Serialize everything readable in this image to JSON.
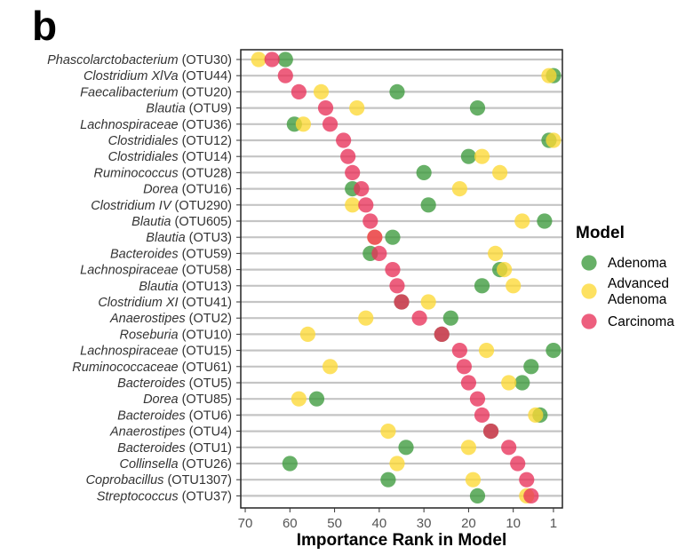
{
  "panel_label": "b",
  "chart_data": {
    "type": "scatter",
    "title": "",
    "xlabel": "Importance Rank in Model",
    "ylabel": "",
    "xlim": [
      71,
      -1
    ],
    "x_reversed": true,
    "x_ticks": [
      70,
      60,
      50,
      40,
      30,
      20,
      10,
      1
    ],
    "grid": "horizontal",
    "legend": {
      "title": "Model",
      "placement": "right",
      "entries": [
        {
          "label_lines": [
            "Adenoma"
          ],
          "color": "#3c9a3c"
        },
        {
          "label_lines": [
            "Advanced",
            "Adenoma"
          ],
          "color": "#fdd835"
        },
        {
          "label_lines": [
            "Carcinoma"
          ],
          "color": "#e8325a"
        }
      ]
    },
    "categories": [
      {
        "genus": "Phascolarctobacterium",
        "otu": "(OTU30)"
      },
      {
        "genus": "Clostridium XlVa",
        "otu": "(OTU44)"
      },
      {
        "genus": "Faecalibacterium",
        "otu": "(OTU20)"
      },
      {
        "genus": "Blautia",
        "otu": "(OTU9)"
      },
      {
        "genus": "Lachnospiraceae",
        "otu": "(OTU36)"
      },
      {
        "genus": "Clostridiales",
        "otu": "(OTU12)"
      },
      {
        "genus": "Clostridiales",
        "otu": "(OTU14)"
      },
      {
        "genus": "Ruminococcus",
        "otu": "(OTU28)"
      },
      {
        "genus": "Dorea",
        "otu": "(OTU16)"
      },
      {
        "genus": "Clostridium IV",
        "otu": "(OTU290)"
      },
      {
        "genus": "Blautia",
        "otu": "(OTU605)"
      },
      {
        "genus": "Blautia",
        "otu": "(OTU3)"
      },
      {
        "genus": "Bacteroides",
        "otu": "(OTU59)"
      },
      {
        "genus": "Lachnospiraceae",
        "otu": "(OTU58)"
      },
      {
        "genus": "Blautia",
        "otu": "(OTU13)"
      },
      {
        "genus": "Clostridium XI",
        "otu": "(OTU41)"
      },
      {
        "genus": "Anaerostipes",
        "otu": "(OTU2)"
      },
      {
        "genus": "Roseburia",
        "otu": "(OTU10)"
      },
      {
        "genus": "Lachnospiraceae",
        "otu": "(OTU15)"
      },
      {
        "genus": "Ruminococcaceae",
        "otu": "(OTU61)"
      },
      {
        "genus": "Bacteroides",
        "otu": "(OTU5)"
      },
      {
        "genus": "Dorea",
        "otu": "(OTU85)"
      },
      {
        "genus": "Bacteroides",
        "otu": "(OTU6)"
      },
      {
        "genus": "Anaerostipes",
        "otu": "(OTU4)"
      },
      {
        "genus": "Bacteroides",
        "otu": "(OTU1)"
      },
      {
        "genus": "Collinsella",
        "otu": "(OTU26)"
      },
      {
        "genus": "Coprobacillus",
        "otu": "(OTU1307)"
      },
      {
        "genus": "Streptococcus",
        "otu": "(OTU37)"
      }
    ],
    "series": [
      {
        "name": "Adenoma",
        "color": "#3c9a3c",
        "values": [
          61,
          1,
          36,
          18,
          59,
          2,
          20,
          30,
          46,
          29,
          3,
          37,
          42,
          13,
          17,
          35,
          24,
          26,
          1,
          6,
          8,
          54,
          4,
          15,
          34,
          60,
          38,
          18
        ]
      },
      {
        "name": "Advanced Adenoma",
        "color": "#fdd835",
        "values": [
          67,
          2,
          53,
          45,
          57,
          1,
          17,
          13,
          22,
          46,
          8,
          41,
          14,
          12,
          10,
          29,
          43,
          56,
          16,
          51,
          11,
          58,
          5,
          38,
          20,
          36,
          19,
          7
        ]
      },
      {
        "name": "Carcinoma",
        "color": "#e8325a",
        "values": [
          64,
          61,
          58,
          52,
          51,
          48,
          47,
          46,
          44,
          43,
          42,
          41,
          40,
          37,
          36,
          35,
          31,
          26,
          22,
          21,
          20,
          18,
          17,
          15,
          11,
          9,
          7,
          6
        ]
      }
    ]
  }
}
